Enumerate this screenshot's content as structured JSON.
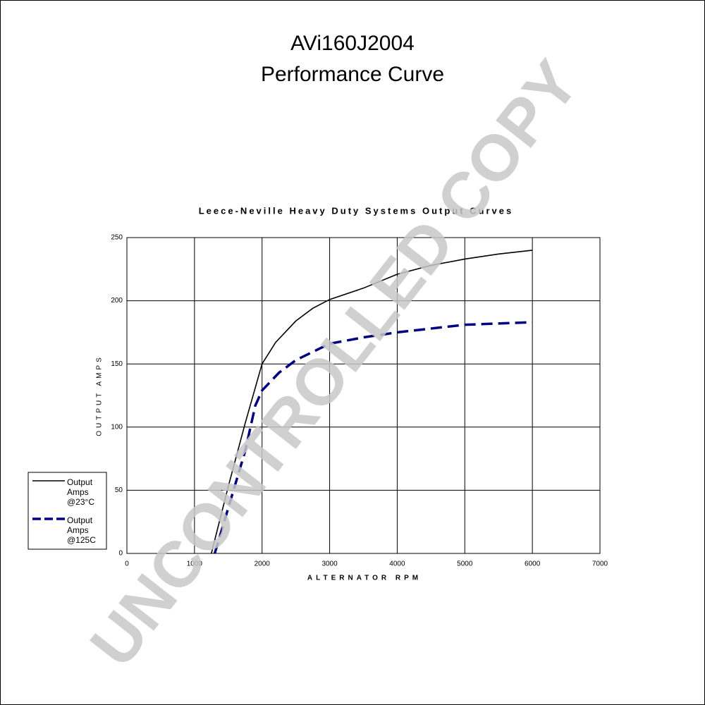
{
  "chart_data": {
    "type": "line",
    "title": "AVi160J2004",
    "subtitle": "Performance Curve",
    "chart_title": "Leece-Neville Heavy Duty Systems Output Curves",
    "watermark": "UNCONTROLLED COPY",
    "x_label": "ALTERNATOR RPM",
    "y_label": "OUTPUT AMPS",
    "xlim": [
      0,
      7000
    ],
    "xticks": [
      0,
      1000,
      2000,
      3000,
      4000,
      5000,
      6000,
      7000
    ],
    "ylim": [
      0,
      250
    ],
    "yticks": [
      0,
      50,
      100,
      150,
      200,
      250
    ],
    "grid": true,
    "legend": "left",
    "series": [
      {
        "name": "Output Amps @23°C",
        "color": "#000000",
        "dash": false,
        "x": [
          1250,
          1500,
          1750,
          2000,
          2200,
          2500,
          2750,
          3000,
          3500,
          4000,
          4500,
          5000,
          5500,
          6000
        ],
        "values": [
          0,
          53,
          103,
          150,
          167,
          184,
          194,
          201,
          210,
          221,
          228,
          233,
          237,
          240
        ]
      },
      {
        "name": "Output Amps @125C",
        "color": "#000080",
        "dash": true,
        "x": [
          1300,
          1500,
          1750,
          1900,
          2000,
          2250,
          2500,
          3000,
          3500,
          4000,
          5000,
          6000
        ],
        "values": [
          0,
          36,
          81,
          117,
          129,
          143,
          153,
          166,
          171,
          175,
          181,
          183
        ]
      }
    ]
  }
}
